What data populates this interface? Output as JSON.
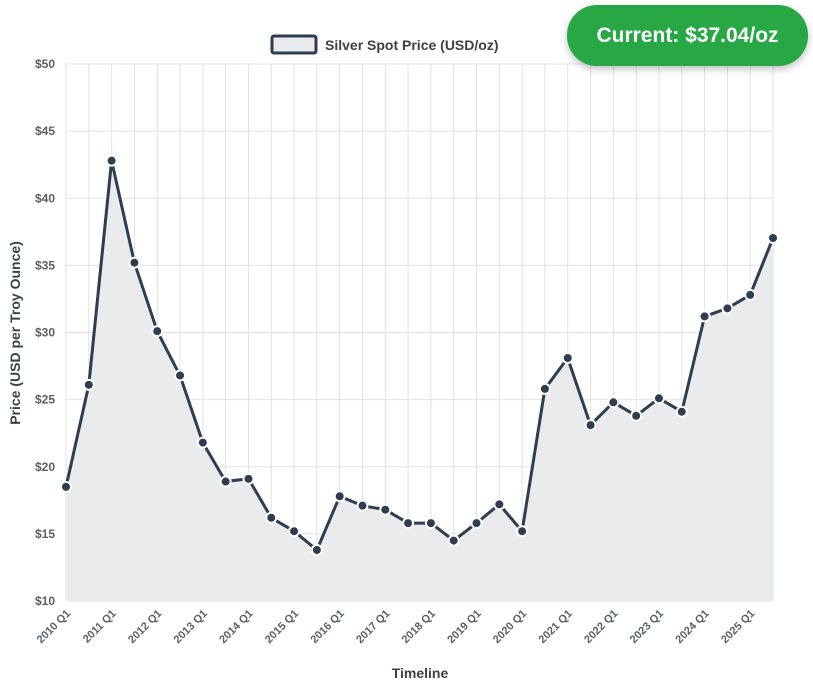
{
  "badge": {
    "text": "Current: $37.04/oz"
  },
  "colors": {
    "line": "#2c3e50",
    "fill": "#eaebed",
    "badge": "#28a745",
    "grid": "#e2e2e2"
  },
  "chart_data": {
    "type": "area",
    "legend": {
      "label": "Silver Spot Price (USD/oz)",
      "position": "top"
    },
    "xlabel": "Timeline",
    "ylabel": "Price (USD per Troy Ounce)",
    "ylim": [
      10,
      50
    ],
    "y_ticks": [
      10,
      15,
      20,
      25,
      30,
      35,
      40,
      45,
      50
    ],
    "y_tick_labels": [
      "$10",
      "$15",
      "$20",
      "$25",
      "$30",
      "$35",
      "$40",
      "$45",
      "$50"
    ],
    "x_tick_labels": [
      "2010 Q1",
      "2011 Q1",
      "2012 Q1",
      "2013 Q1",
      "2014 Q1",
      "2015 Q1",
      "2016 Q1",
      "2017 Q1",
      "2018 Q1",
      "2019 Q1",
      "2020 Q1",
      "2021 Q1",
      "2022 Q1",
      "2023 Q1",
      "2024 Q1",
      "2025 Q1"
    ],
    "grid": true,
    "series": [
      {
        "name": "Silver Spot Price (USD/oz)",
        "values": [
          18.5,
          26.1,
          42.8,
          35.2,
          30.1,
          26.8,
          21.8,
          18.9,
          19.1,
          16.2,
          15.2,
          13.8,
          17.8,
          17.1,
          16.8,
          15.8,
          15.8,
          14.5,
          15.8,
          17.2,
          15.2,
          25.8,
          28.1,
          23.1,
          24.8,
          23.8,
          25.1,
          24.1,
          31.2,
          31.8,
          32.8,
          37.04
        ]
      }
    ]
  }
}
